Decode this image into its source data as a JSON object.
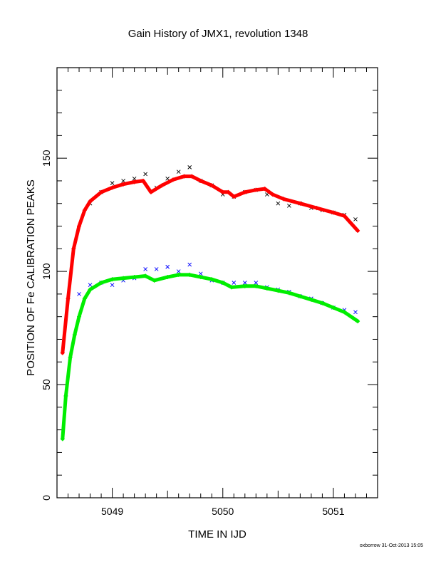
{
  "chart_data": {
    "type": "scatter",
    "title": "Gain History of JMX1, revolution 1348",
    "xlabel": "TIME IN IJD",
    "ylabel": "POSITION OF Fe CALIBRATION PEAKS",
    "xlim": [
      5048.5,
      5051.4
    ],
    "ylim": [
      0,
      190
    ],
    "xticks": [
      5049,
      5050,
      5051
    ],
    "yticks": [
      0,
      50,
      100,
      150
    ],
    "grid": false,
    "series": [
      {
        "role": "upper-raw",
        "marker": "x",
        "color": "#000000",
        "x": [
          5048.8,
          5048.9,
          5049.0,
          5049.1,
          5049.2,
          5049.3,
          5049.4,
          5049.5,
          5049.6,
          5049.7,
          5049.8,
          5049.9,
          5050.0,
          5050.1,
          5050.2,
          5050.3,
          5050.4,
          5050.5,
          5050.6,
          5050.7,
          5050.8,
          5050.9,
          5051.0,
          5051.1,
          5051.2
        ],
        "y": [
          130,
          135,
          139,
          140,
          141,
          143,
          137,
          141,
          144,
          146,
          140,
          138,
          134,
          133,
          135,
          136,
          134,
          130,
          129,
          130,
          128,
          127,
          126,
          125,
          123
        ]
      },
      {
        "role": "upper-fit",
        "marker": "+",
        "color": "#ff0000",
        "x": [
          5048.55,
          5048.6,
          5048.65,
          5048.7,
          5048.75,
          5048.8,
          5048.9,
          5049.0,
          5049.1,
          5049.2,
          5049.28,
          5049.35,
          5049.45,
          5049.55,
          5049.65,
          5049.72,
          5049.8,
          5049.9,
          5050.0,
          5050.05,
          5050.1,
          5050.2,
          5050.3,
          5050.38,
          5050.45,
          5050.55,
          5050.7,
          5050.85,
          5051.0,
          5051.1,
          5051.22
        ],
        "y": [
          64,
          88,
          110,
          120,
          127,
          131,
          135,
          137,
          138.5,
          139.5,
          140,
          135,
          138,
          140.5,
          142,
          142,
          140,
          138,
          135,
          135,
          133,
          135,
          136,
          136.5,
          134,
          132,
          130,
          128,
          126,
          124.5,
          118
        ]
      },
      {
        "role": "lower-raw",
        "marker": "x",
        "color": "#0000ff",
        "x": [
          5048.7,
          5048.8,
          5048.9,
          5049.0,
          5049.1,
          5049.2,
          5049.3,
          5049.4,
          5049.5,
          5049.6,
          5049.7,
          5049.8,
          5049.9,
          5050.0,
          5050.1,
          5050.2,
          5050.3,
          5050.4,
          5050.5,
          5050.6,
          5050.7,
          5050.8,
          5050.9,
          5051.0,
          5051.1,
          5051.2
        ],
        "y": [
          90,
          94,
          95,
          94,
          96,
          97,
          101,
          101,
          102,
          100,
          103,
          99,
          96,
          95,
          95,
          95,
          95,
          93,
          92,
          91,
          89,
          88,
          86,
          84,
          83,
          82
        ]
      },
      {
        "role": "lower-fit",
        "marker": "+",
        "color": "#00ee00",
        "x": [
          5048.55,
          5048.58,
          5048.62,
          5048.66,
          5048.7,
          5048.75,
          5048.8,
          5048.9,
          5049.0,
          5049.1,
          5049.2,
          5049.3,
          5049.38,
          5049.5,
          5049.6,
          5049.7,
          5049.8,
          5049.9,
          5050.0,
          5050.08,
          5050.2,
          5050.3,
          5050.4,
          5050.5,
          5050.6,
          5050.7,
          5050.8,
          5050.9,
          5051.0,
          5051.1,
          5051.22
        ],
        "y": [
          26,
          45,
          62,
          72,
          80,
          88,
          92,
          95,
          96.5,
          97,
          97.5,
          98,
          96,
          97.5,
          98.5,
          98.5,
          97.5,
          96.5,
          95,
          93,
          93.5,
          93.5,
          92.5,
          91.5,
          90.5,
          89,
          87.5,
          86,
          84,
          82,
          78
        ]
      }
    ]
  },
  "footer": {
    "credit": "oxborrow 31-Oct-2013 15:05"
  }
}
